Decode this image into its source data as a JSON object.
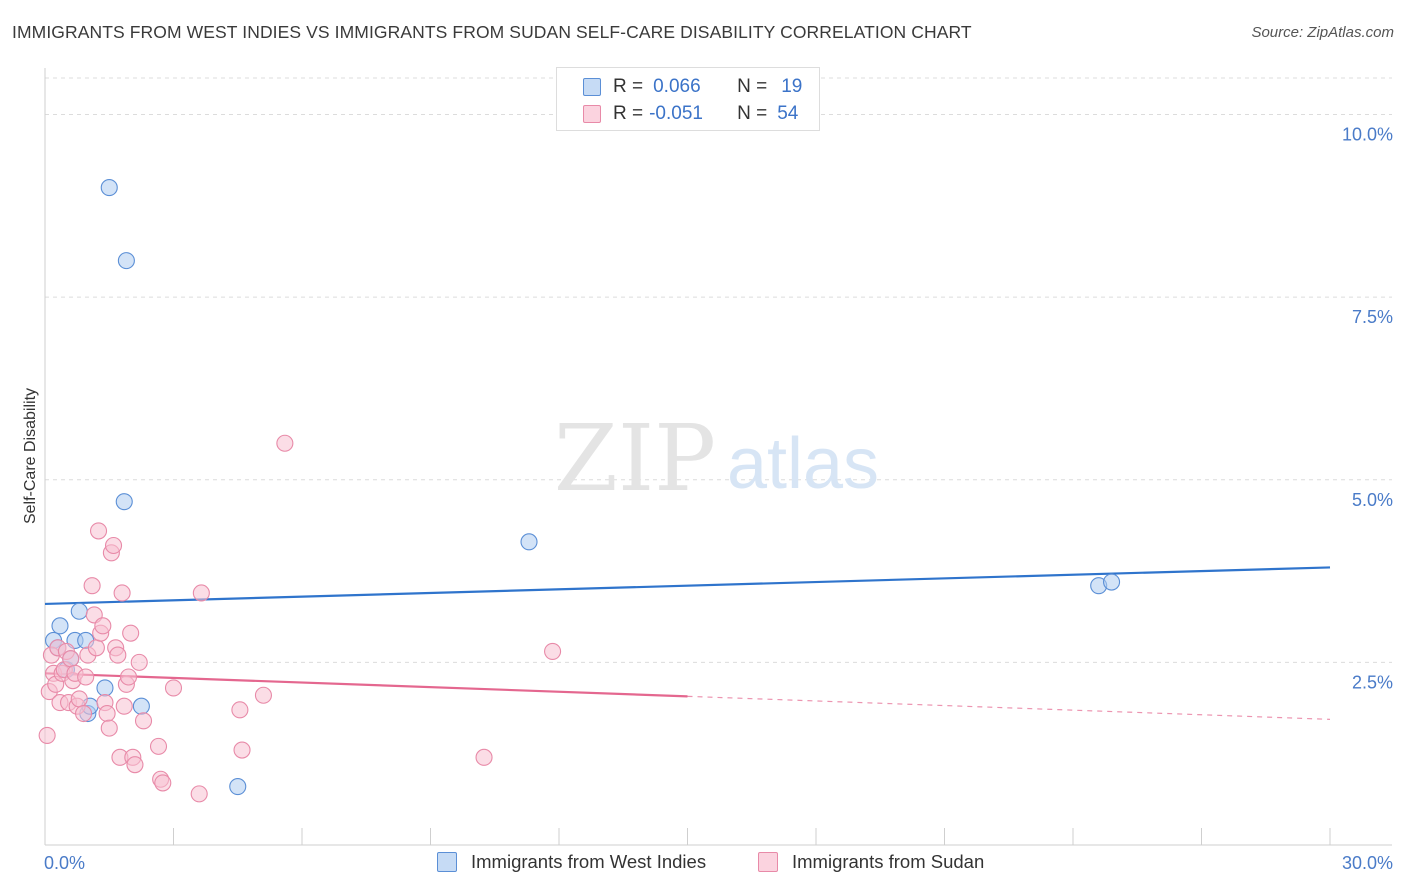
{
  "title": "IMMIGRANTS FROM WEST INDIES VS IMMIGRANTS FROM SUDAN SELF-CARE DISABILITY CORRELATION CHART",
  "source": "Source: ZipAtlas.com",
  "watermark": {
    "zip": "ZIP",
    "atlas": "atlas"
  },
  "legend": {
    "r_key": "R =",
    "n_key": "N =",
    "rows": [
      {
        "r": "0.066",
        "n": "19"
      },
      {
        "r": "-0.051",
        "n": "54"
      }
    ]
  },
  "colors": {
    "blue_fill": "#aeccf0",
    "blue_stroke": "#5b8fd6",
    "blue_line": "#2f74cc",
    "pink_fill": "#f7c1d2",
    "pink_stroke": "#e88aa8",
    "pink_line": "#e4678f",
    "tick_text": "#4a7bc8"
  },
  "chart_data": {
    "type": "scatter",
    "title": "IMMIGRANTS FROM WEST INDIES VS IMMIGRANTS FROM SUDAN SELF-CARE DISABILITY CORRELATION CHART",
    "xlabel": "",
    "ylabel": "Self-Care Disability",
    "xlim": [
      0,
      30
    ],
    "ylim": [
      0,
      10.5
    ],
    "x_tick_labels": [
      "0.0%",
      "30.0%"
    ],
    "y_ticks": [
      2.5,
      5.0,
      7.5,
      10.0
    ],
    "y_tick_labels": [
      "2.5%",
      "5.0%",
      "7.5%",
      "10.0%"
    ],
    "grid": "horizontal dashed",
    "legend_position": "top-center",
    "series": [
      {
        "name": "Immigrants from West Indies",
        "color": "blue",
        "r": 0.066,
        "n": 19,
        "trend": {
          "x": [
            0,
            30
          ],
          "y": [
            3.3,
            3.8
          ],
          "dashed_from": null
        },
        "points": [
          [
            0.2,
            2.8
          ],
          [
            0.3,
            2.7
          ],
          [
            0.35,
            3.0
          ],
          [
            0.5,
            2.4
          ],
          [
            0.6,
            2.55
          ],
          [
            0.7,
            2.8
          ],
          [
            0.8,
            3.2
          ],
          [
            0.95,
            2.8
          ],
          [
            1.0,
            1.8
          ],
          [
            1.05,
            1.9
          ],
          [
            1.4,
            2.15
          ],
          [
            1.5,
            9.0
          ],
          [
            1.9,
            8.0
          ],
          [
            1.85,
            4.7
          ],
          [
            2.25,
            1.9
          ],
          [
            4.5,
            0.8
          ],
          [
            11.3,
            4.15
          ],
          [
            24.6,
            3.55
          ],
          [
            24.9,
            3.6
          ]
        ]
      },
      {
        "name": "Immigrants from Sudan",
        "color": "pink",
        "r": -0.051,
        "n": 54,
        "trend": {
          "x": [
            0,
            30
          ],
          "y": [
            2.35,
            1.72
          ],
          "dashed_from": 15
        },
        "points": [
          [
            0.1,
            2.1
          ],
          [
            0.15,
            2.6
          ],
          [
            0.2,
            2.35
          ],
          [
            0.25,
            2.2
          ],
          [
            0.3,
            2.7
          ],
          [
            0.35,
            1.95
          ],
          [
            0.4,
            2.35
          ],
          [
            0.45,
            2.4
          ],
          [
            0.5,
            2.65
          ],
          [
            0.55,
            1.95
          ],
          [
            0.6,
            2.55
          ],
          [
            0.65,
            2.25
          ],
          [
            0.7,
            2.35
          ],
          [
            0.75,
            1.9
          ],
          [
            0.8,
            2.0
          ],
          [
            0.9,
            1.8
          ],
          [
            0.95,
            2.3
          ],
          [
            1.0,
            2.6
          ],
          [
            1.1,
            3.55
          ],
          [
            1.15,
            3.15
          ],
          [
            1.2,
            2.7
          ],
          [
            1.25,
            4.3
          ],
          [
            1.3,
            2.9
          ],
          [
            1.35,
            3.0
          ],
          [
            1.4,
            1.95
          ],
          [
            1.45,
            1.8
          ],
          [
            1.5,
            1.6
          ],
          [
            1.55,
            4.0
          ],
          [
            1.6,
            4.1
          ],
          [
            1.65,
            2.7
          ],
          [
            1.7,
            2.6
          ],
          [
            1.75,
            1.2
          ],
          [
            1.8,
            3.45
          ],
          [
            1.85,
            1.9
          ],
          [
            1.9,
            2.2
          ],
          [
            1.95,
            2.3
          ],
          [
            2.0,
            2.9
          ],
          [
            2.05,
            1.2
          ],
          [
            2.1,
            1.1
          ],
          [
            2.2,
            2.5
          ],
          [
            2.3,
            1.7
          ],
          [
            2.65,
            1.35
          ],
          [
            2.7,
            0.9
          ],
          [
            2.75,
            0.85
          ],
          [
            3.0,
            2.15
          ],
          [
            3.6,
            0.7
          ],
          [
            3.65,
            3.45
          ],
          [
            4.55,
            1.85
          ],
          [
            4.6,
            1.3
          ],
          [
            5.1,
            2.05
          ],
          [
            5.6,
            5.5
          ],
          [
            10.25,
            1.2
          ],
          [
            11.85,
            2.65
          ],
          [
            0.05,
            1.5
          ]
        ]
      }
    ]
  }
}
